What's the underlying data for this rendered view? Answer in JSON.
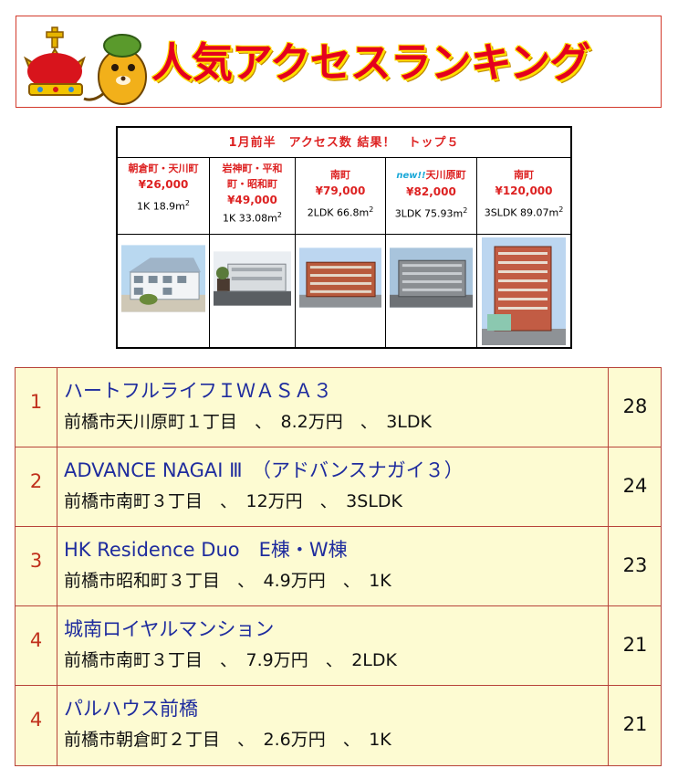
{
  "banner": {
    "title": "人気アクセスランキング"
  },
  "top5": {
    "header": "1月前半　アクセス数 結果！　トップ５",
    "new_badge": "new!!",
    "items": [
      {
        "area": "朝倉町・天川町",
        "price": "¥26,000",
        "layout": "1K 18.9m",
        "sup": "2",
        "is_new": false
      },
      {
        "area": "岩神町・平和町・昭和町",
        "price": "¥49,000",
        "layout": "1K 33.08m",
        "sup": "2",
        "is_new": false
      },
      {
        "area": "南町",
        "price": "¥79,000",
        "layout": "2LDK 66.8m",
        "sup": "2",
        "is_new": false
      },
      {
        "area": "天川原町",
        "price": "¥82,000",
        "layout": "3LDK 75.93m",
        "sup": "2",
        "is_new": true
      },
      {
        "area": "南町",
        "price": "¥120,000",
        "layout": "3SLDK 89.07m",
        "sup": "2",
        "is_new": false
      }
    ]
  },
  "ranking": {
    "rows": [
      {
        "rank": "1",
        "name": "ハートフルライフＩＷＡＳＡ３",
        "detail": "前橋市天川原町１丁目　、　8.2万円　、　3LDK",
        "count": "28"
      },
      {
        "rank": "2",
        "name": "ADVANCE NAGAI Ⅲ　（アドバンスナガイ３）",
        "detail": "前橋市南町３丁目　、　12万円　、　3SLDK",
        "count": "24"
      },
      {
        "rank": "3",
        "name": "HK Residence Duo　E棟・W棟",
        "detail": "前橋市昭和町３丁目　、　4.9万円　、　1K",
        "count": "23"
      },
      {
        "rank": "4",
        "name": "城南ロイヤルマンション",
        "detail": "前橋市南町３丁目　、　7.9万円　、　2LDK",
        "count": "21"
      },
      {
        "rank": "4",
        "name": "パルハウス前橋",
        "detail": "前橋市朝倉町２丁目　、　2.6万円　、　1K",
        "count": "21"
      }
    ]
  }
}
